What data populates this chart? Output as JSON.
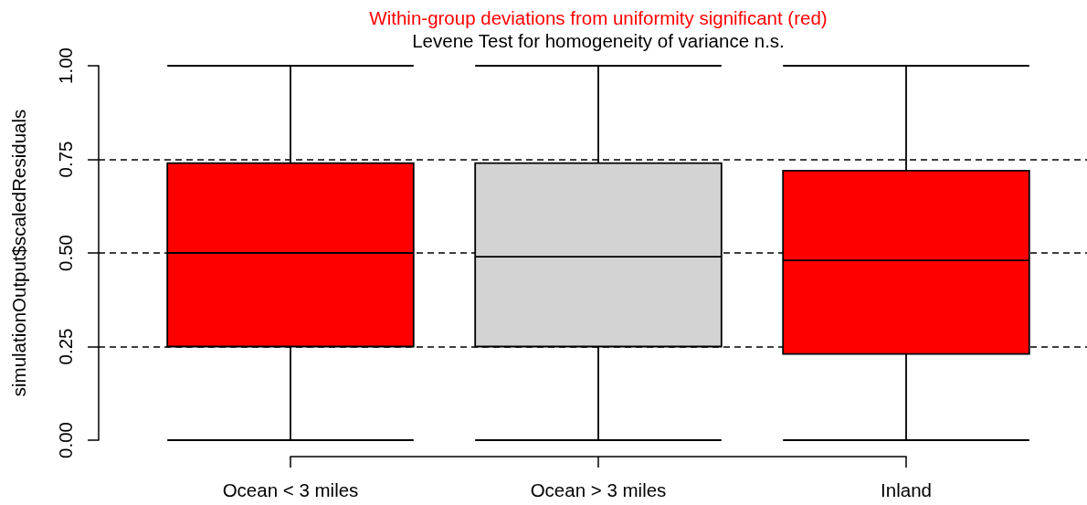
{
  "chart_data": {
    "type": "box",
    "title": "Within-group deviations from uniformity significant (red)",
    "subtitle": "Levene Test for homogeneity of variance n.s.",
    "ylabel": "simulationOutput$scaledResiduals",
    "categories": [
      "Ocean < 3 miles",
      "Ocean > 3 miles",
      "Inland"
    ],
    "boxes": [
      {
        "low": 0,
        "q1": 0.25,
        "median": 0.5,
        "q3": 0.74,
        "high": 1
      },
      {
        "low": 0,
        "q1": 0.25,
        "median": 0.49,
        "q3": 0.74,
        "high": 1
      },
      {
        "low": 0,
        "q1": 0.23,
        "median": 0.48,
        "q3": 0.72,
        "high": 1
      }
    ],
    "colors": [
      "#ff0000",
      "#d3d3d3",
      "#ff0000"
    ],
    "ylim": [
      0,
      1
    ],
    "yticks": [
      {
        "value": 0,
        "label": "0.00"
      },
      {
        "value": 0.25,
        "label": "0.25"
      },
      {
        "value": 0.5,
        "label": "0.50"
      },
      {
        "value": 0.75,
        "label": "0.75"
      },
      {
        "value": 1,
        "label": "1.00"
      }
    ],
    "grid": "y"
  }
}
